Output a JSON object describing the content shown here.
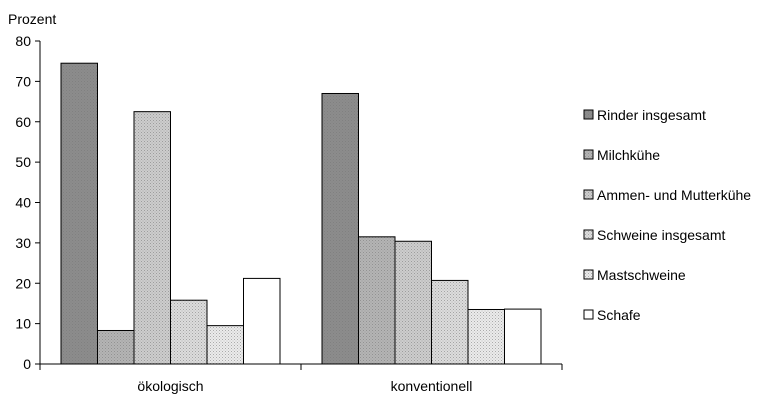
{
  "chart_data": {
    "type": "bar",
    "ylabel": "Prozent",
    "ylim": [
      0,
      80
    ],
    "yticks": [
      0,
      10,
      20,
      30,
      40,
      50,
      60,
      70,
      80
    ],
    "categories": [
      "ökologisch",
      "konventionell"
    ],
    "series": [
      {
        "name": "Rinder insgesamt",
        "values": [
          74.5,
          67
        ],
        "color": "#8c8c8c"
      },
      {
        "name": "Milchkühe",
        "values": [
          8.3,
          31.5
        ],
        "color": "#b4b4b4"
      },
      {
        "name": "Ammen- und Mutterkühe",
        "values": [
          62.5,
          30.4
        ],
        "color": "#cdcdcd"
      },
      {
        "name": "Schweine insgesamt",
        "values": [
          15.8,
          20.7
        ],
        "color": "#dcdcdc"
      },
      {
        "name": "Mastschweine",
        "values": [
          9.5,
          13.5
        ],
        "color": "#ebebeb"
      },
      {
        "name": "Schafe",
        "values": [
          21.2,
          13.6
        ],
        "color": "#ffffff"
      }
    ],
    "legend": "right",
    "grid": false
  }
}
